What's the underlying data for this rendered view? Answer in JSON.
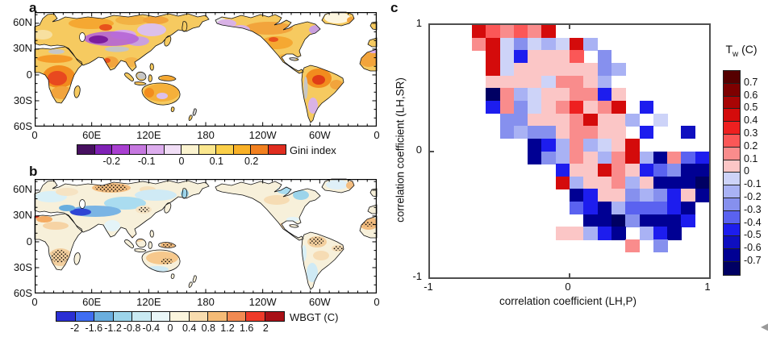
{
  "panels": {
    "a": {
      "label": "a",
      "lat_ticks": [
        "60N",
        "30N",
        "0",
        "30S",
        "60S"
      ],
      "lon_ticks": [
        "0",
        "60E",
        "120E",
        "180",
        "120W",
        "60W",
        "0"
      ],
      "colorbar": {
        "label": "Gini index",
        "tick_labels": [
          "-0.2",
          "-0.1",
          "0",
          "0.1",
          "0.2"
        ],
        "colors": [
          "#471060",
          "#7f21b5",
          "#a93fd1",
          "#c678e0",
          "#ddadee",
          "#f1def6",
          "#fbf3cf",
          "#fbe78e",
          "#fbcf48",
          "#f9b127",
          "#f2801f",
          "#e02d1f"
        ]
      }
    },
    "b": {
      "label": "b",
      "lat_ticks": [
        "60N",
        "30N",
        "0",
        "30S",
        "60S"
      ],
      "lon_ticks": [
        "0",
        "60E",
        "120E",
        "180",
        "120W",
        "60W",
        "0"
      ],
      "colorbar": {
        "label": "WBGT (C)",
        "tick_labels": [
          "-2",
          "-1.6",
          "-1.2",
          "-0.8",
          "-0.4",
          "0",
          "0.4",
          "0.8",
          "1.2",
          "1.6",
          "2"
        ],
        "colors": [
          "#2b2fd4",
          "#3f6df2",
          "#6aaede",
          "#9cd4ea",
          "#c9eaf3",
          "#e9f6f8",
          "#fbf5dd",
          "#f8dcae",
          "#f5bb76",
          "#f18a52",
          "#ee3a29",
          "#a81016"
        ]
      }
    },
    "c": {
      "label": "c",
      "x_axis": {
        "label": "correlation coefficient (LH,P)",
        "tick_labels": [
          "-1",
          "0",
          "1"
        ]
      },
      "y_axis": {
        "label": "correlation coefficient (LH,SR)",
        "tick_labels": [
          "1",
          "0",
          "-1"
        ]
      },
      "colorbar": {
        "title_base": "T",
        "title_sub": "w",
        "title_unit": " (C)",
        "tick_labels": [
          "0.7",
          "0.6",
          "0.5",
          "0.4",
          "0.3",
          "0.2",
          "0.1",
          "0",
          "-0.1",
          "-0.2",
          "-0.3",
          "-0.4",
          "-0.5",
          "-0.6",
          "-0.7"
        ],
        "colors": [
          "#560000",
          "#7e0000",
          "#a80505",
          "#d40b0b",
          "#ee2020",
          "#fb5757",
          "#f98c8c",
          "#fbc6c6",
          "#cdd3f8",
          "#a9b2f4",
          "#8690ee",
          "#5a62f0",
          "#1d1dee",
          "#0f0fc0",
          "#000093",
          "#000063"
        ]
      }
    }
  },
  "chart_data": [
    {
      "panel": "a",
      "type": "heatmap",
      "subtype": "global-map",
      "variable": "Gini index",
      "lon_ticks": [
        0,
        60,
        120,
        180,
        240,
        300,
        360
      ],
      "lat_ticks": [
        60,
        30,
        0,
        -30,
        -60
      ],
      "colorbar_range": [
        -0.3,
        0.3
      ],
      "colorbar_step": 0.05,
      "colorbar_tick_values": [
        -0.2,
        -0.1,
        0,
        0.1,
        0.2
      ],
      "notes": "Positive (orange/red) over Africa, South America, eastern North America, Australia, India; negative (purple) over Central Asia, western North America, Patagonia; gray no-data over Tibet and Andes"
    },
    {
      "panel": "b",
      "type": "heatmap",
      "subtype": "global-map",
      "variable": "WBGT (C)",
      "lon_ticks": [
        0,
        60,
        120,
        180,
        240,
        300,
        360
      ],
      "lat_ticks": [
        60,
        30,
        0,
        -30,
        -60
      ],
      "colorbar_range": [
        -2.4,
        2.4
      ],
      "colorbar_step": 0.4,
      "colorbar_tick_values": [
        -2,
        -1.6,
        -1.2,
        -0.8,
        -0.4,
        0,
        0.4,
        0.8,
        1.2,
        1.6,
        2
      ],
      "notes": "Strong negative (blue) band over Middle East/Central Asia; positive (tan/orange) with stippling over northern Russia, southern Africa, Australia, northern South America; stippling marks dotted significance regions"
    },
    {
      "panel": "c",
      "type": "heatmap",
      "x_label": "correlation coefficient (LH,P)",
      "y_label": "correlation coefficient (LH,SR)",
      "x_range": [
        -1,
        1
      ],
      "y_range": [
        -1,
        1
      ],
      "cell_size": 0.1,
      "colorbar_label": "Tw (C)",
      "colorbar_range": [
        -0.75,
        0.75
      ],
      "palette": {
        "0.05": "#fbc6c6",
        "0.15": "#f98c8c",
        "0.25": "#fb5757",
        "0.35": "#ee2020",
        "0.45": "#d40b0b",
        "0.55": "#a80505",
        "0.65": "#7e0000",
        "0.75": "#560000",
        "-0.05": "#cdd3f8",
        "-0.15": "#a9b2f4",
        "-0.25": "#8690ee",
        "-0.35": "#5a62f0",
        "-0.45": "#1d1dee",
        "-0.55": "#0f0fc0",
        "-0.65": "#000093",
        "-0.75": "#000063"
      },
      "values_row_major_top_to_bottom": [
        [
          null,
          null,
          null,
          0.45,
          0.25,
          0.15,
          0.25,
          0.15,
          0.45,
          null,
          null,
          null,
          null,
          null,
          null,
          null,
          null,
          null,
          null,
          null
        ],
        [
          null,
          null,
          null,
          0.15,
          0.45,
          -0.05,
          -0.25,
          -0.05,
          -0.15,
          -0.05,
          0.45,
          -0.15,
          null,
          null,
          null,
          null,
          null,
          null,
          null,
          null
        ],
        [
          null,
          null,
          null,
          null,
          0.45,
          -0.05,
          -0.45,
          0.05,
          0.05,
          0.05,
          0.25,
          null,
          -0.25,
          null,
          null,
          null,
          null,
          null,
          null,
          null
        ],
        [
          null,
          null,
          null,
          null,
          0.45,
          -0.05,
          0.05,
          0.05,
          0.05,
          0.05,
          0.05,
          0.05,
          -0.25,
          -0.15,
          null,
          null,
          null,
          null,
          null,
          null
        ],
        [
          null,
          null,
          null,
          null,
          0.05,
          0.05,
          0.05,
          0.05,
          -0.05,
          0.15,
          0.15,
          0.05,
          -0.15,
          null,
          null,
          null,
          null,
          null,
          null,
          null
        ],
        [
          null,
          null,
          null,
          null,
          -0.75,
          0.15,
          -0.15,
          -0.05,
          0.05,
          0.05,
          0.15,
          0.15,
          -0.45,
          0.05,
          null,
          null,
          null,
          null,
          null,
          null
        ],
        [
          null,
          null,
          null,
          null,
          -0.45,
          0.15,
          -0.25,
          -0.05,
          0.05,
          0.15,
          0.35,
          0.05,
          0.15,
          0.45,
          null,
          -0.45,
          null,
          null,
          null,
          null
        ],
        [
          null,
          null,
          null,
          null,
          null,
          -0.25,
          -0.25,
          0.05,
          0.05,
          0.05,
          0.15,
          0.45,
          0.05,
          0.05,
          -0.15,
          null,
          -0.05,
          null,
          null,
          null
        ],
        [
          null,
          null,
          null,
          null,
          null,
          -0.25,
          -0.15,
          -0.25,
          -0.25,
          0.05,
          0.15,
          0.15,
          0.05,
          0.05,
          null,
          -0.45,
          null,
          null,
          -0.55,
          null
        ],
        [
          null,
          null,
          null,
          null,
          null,
          null,
          null,
          -0.65,
          -0.45,
          -0.15,
          0.15,
          -0.15,
          -0.05,
          0.05,
          0.45,
          null,
          null,
          null,
          null,
          null
        ],
        [
          null,
          null,
          null,
          null,
          null,
          null,
          null,
          -0.65,
          -0.25,
          -0.15,
          0.15,
          0.05,
          -0.15,
          0.15,
          0.45,
          -0.15,
          -0.65,
          0.15,
          -0.35,
          -0.45
        ],
        [
          null,
          null,
          null,
          null,
          null,
          null,
          null,
          null,
          null,
          -0.45,
          0.05,
          0.05,
          0.45,
          0.15,
          0.05,
          -0.45,
          -0.35,
          -0.25,
          -0.65,
          -0.65
        ],
        [
          null,
          null,
          null,
          null,
          null,
          null,
          null,
          null,
          null,
          0.45,
          -0.15,
          0.05,
          0.05,
          0.15,
          -0.15,
          0.05,
          -0.65,
          -0.65,
          -0.65,
          -0.75
        ],
        [
          null,
          null,
          null,
          null,
          null,
          null,
          null,
          null,
          null,
          null,
          -0.65,
          -0.45,
          0.05,
          0.05,
          -0.25,
          -0.15,
          -0.25,
          -0.45,
          0.05,
          -0.65
        ],
        [
          null,
          null,
          null,
          null,
          null,
          null,
          null,
          null,
          null,
          null,
          -0.35,
          -0.45,
          -0.65,
          -0.15,
          -0.35,
          -0.35,
          -0.35,
          -0.45,
          -0.65,
          null
        ],
        [
          null,
          null,
          null,
          null,
          null,
          null,
          null,
          null,
          null,
          null,
          null,
          -0.65,
          -0.65,
          -0.75,
          -0.25,
          -0.65,
          -0.65,
          -0.65,
          -0.45,
          null
        ],
        [
          null,
          null,
          null,
          null,
          null,
          null,
          null,
          null,
          null,
          0.05,
          0.05,
          -0.15,
          -0.45,
          -0.65,
          null,
          -0.15,
          -0.45,
          -0.65,
          null,
          null
        ],
        [
          null,
          null,
          null,
          null,
          null,
          null,
          null,
          null,
          null,
          null,
          null,
          null,
          null,
          null,
          0.15,
          null,
          -0.25,
          null,
          null,
          null
        ],
        [
          null,
          null,
          null,
          null,
          null,
          null,
          null,
          null,
          null,
          null,
          null,
          null,
          null,
          null,
          null,
          null,
          null,
          null,
          null,
          null
        ],
        [
          null,
          null,
          null,
          null,
          null,
          null,
          null,
          null,
          null,
          null,
          null,
          null,
          null,
          null,
          null,
          null,
          null,
          null,
          null,
          null
        ]
      ]
    }
  ]
}
